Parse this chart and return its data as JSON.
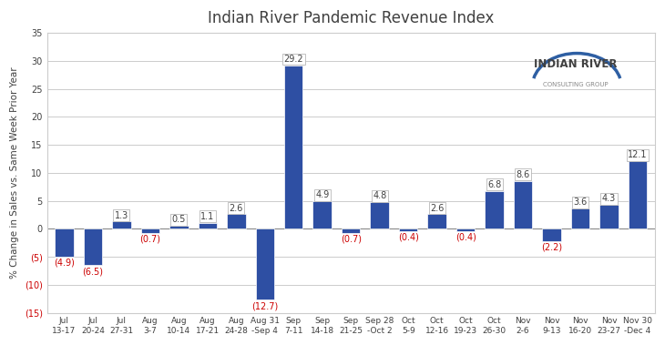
{
  "title": "Indian River Pandemic Revenue Index",
  "ylabel": "% Change in Sales vs. Same Week Prior Year",
  "categories": [
    "Jul\n13-17",
    "Jul\n20-24",
    "Jul\n27-31",
    "Aug\n3-7",
    "Aug\n10-14",
    "Aug\n17-21",
    "Aug\n24-28",
    "Aug 31\n-Sep 4",
    "Sep\n7-11",
    "Sep\n14-18",
    "Sep\n21-25",
    "Sep 28\n-Oct 2",
    "Oct\n5-9",
    "Oct\n12-16",
    "Oct\n19-23",
    "Oct\n26-30",
    "Nov\n2-6",
    "Nov\n9-13",
    "Nov\n16-20",
    "Nov\n23-27",
    "Nov 30\n-Dec 4"
  ],
  "values": [
    -4.9,
    -6.5,
    1.3,
    -0.7,
    0.5,
    1.1,
    2.6,
    -12.7,
    29.2,
    4.9,
    -0.7,
    4.8,
    -0.4,
    2.6,
    -0.4,
    6.8,
    8.6,
    -2.2,
    3.6,
    4.3,
    12.1
  ],
  "bar_color": "#2e4fa3",
  "label_color_positive": "#404040",
  "label_color_negative": "#cc0000",
  "ylim": [
    -15,
    35
  ],
  "yticks": [
    -15,
    -10,
    -5,
    0,
    5,
    10,
    15,
    20,
    25,
    30,
    35
  ],
  "background_color": "#ffffff",
  "grid_color": "#cccccc",
  "title_fontsize": 12,
  "axis_label_fontsize": 7.5,
  "tick_fontsize": 7,
  "bar_label_fontsize": 7
}
